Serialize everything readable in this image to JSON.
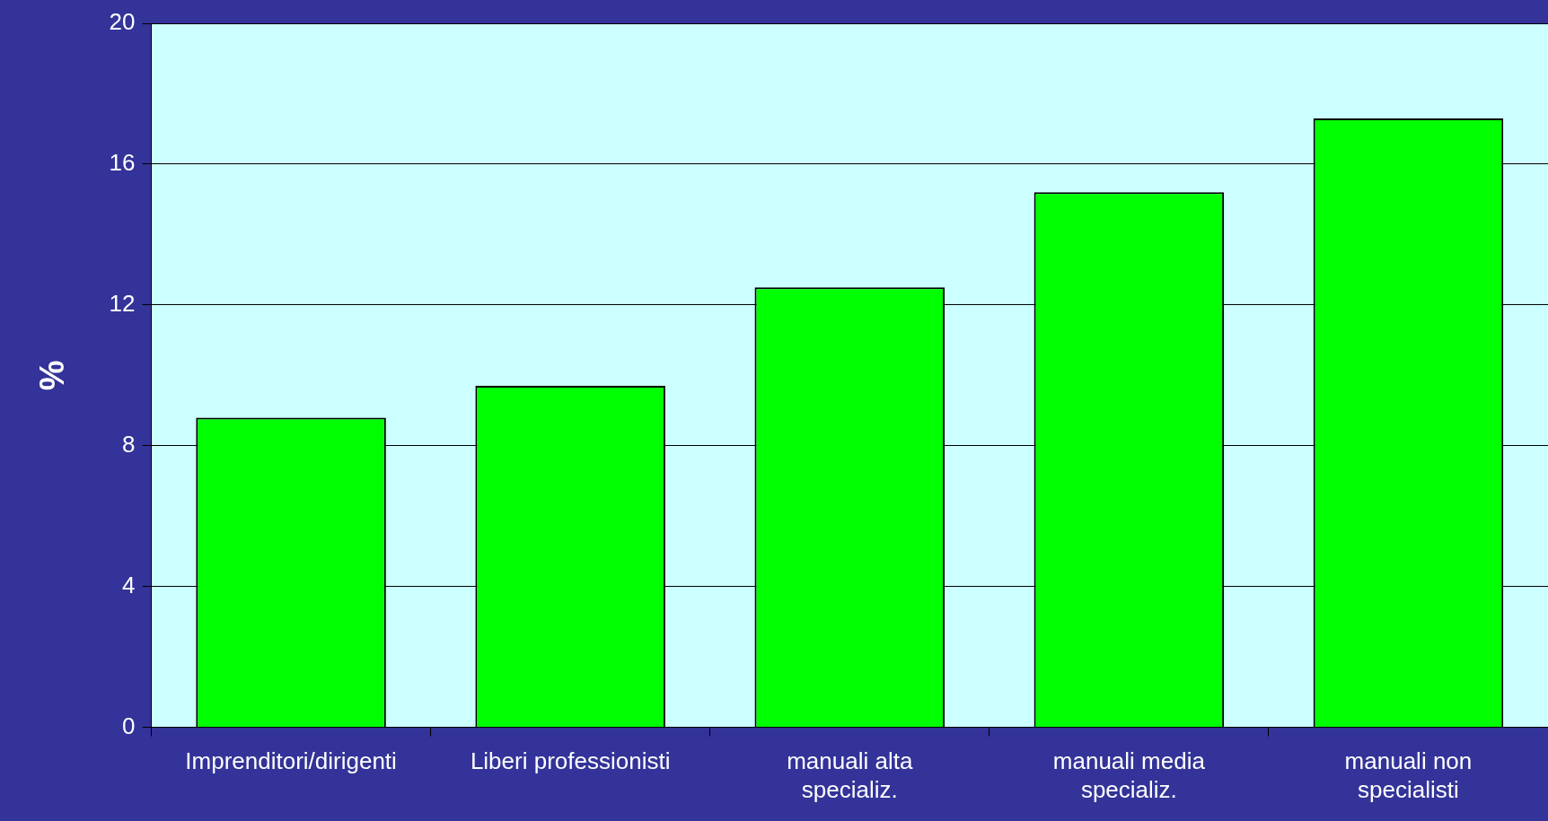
{
  "chart_data": {
    "type": "bar",
    "ylabel": "%",
    "categories": [
      "Imprenditori/dirigenti",
      "Liberi professionisti",
      "manuali alta specializ.",
      "manuali media specializ.",
      "manuali non specialisti"
    ],
    "values": [
      8.8,
      9.7,
      12.5,
      15.2,
      17.3
    ],
    "color": "#00ff00",
    "ylim": [
      0,
      20
    ],
    "yticks": [
      0,
      4,
      8,
      12,
      16,
      20
    ],
    "grid": "y"
  }
}
